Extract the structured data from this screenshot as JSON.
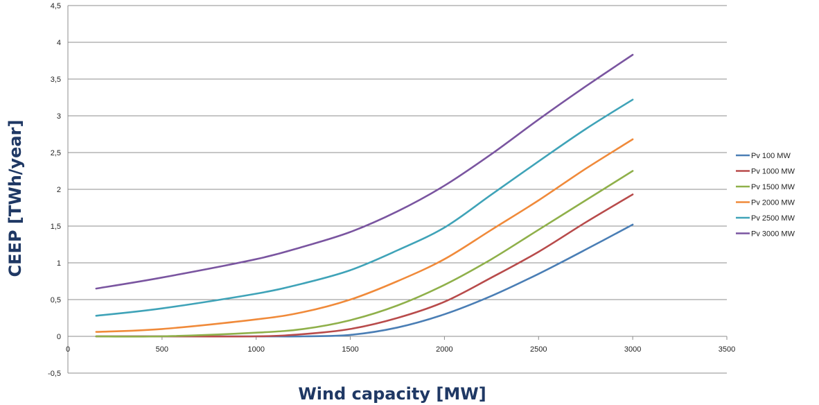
{
  "chart_data": {
    "type": "line",
    "title": "",
    "xlabel": "Wind capacity [MW]",
    "ylabel": "CEEP [TWh/year]",
    "xlim": [
      0,
      3500
    ],
    "ylim": [
      -0.5,
      4.5
    ],
    "x_ticks": [
      0,
      500,
      1000,
      1500,
      2000,
      2500,
      3000,
      3500
    ],
    "y_ticks": [
      -0.5,
      0,
      0.5,
      1,
      1.5,
      2,
      2.5,
      3,
      3.5,
      4,
      4.5
    ],
    "x_tick_labels": [
      "0",
      "500",
      "1000",
      "1500",
      "2000",
      "2500",
      "3000",
      "3500"
    ],
    "y_tick_labels": [
      "-0,5",
      "0",
      "0,5",
      "1",
      "1,5",
      "2",
      "2,5",
      "3",
      "3,5",
      "4",
      "4,5"
    ],
    "grid": "horizontal",
    "legend_position": "right",
    "x": [
      150,
      500,
      1000,
      1250,
      1500,
      1750,
      2000,
      2250,
      2500,
      2750,
      3000
    ],
    "series": [
      {
        "name": "Pv 100 MW",
        "color": "#4a7eb5",
        "values": [
          0,
          0,
          0,
          0,
          0.02,
          0.12,
          0.3,
          0.55,
          0.85,
          1.18,
          1.52
        ]
      },
      {
        "name": "Pv 1000 MW",
        "color": "#b84b4b",
        "values": [
          0,
          0,
          0,
          0.03,
          0.1,
          0.25,
          0.47,
          0.8,
          1.15,
          1.55,
          1.93
        ]
      },
      {
        "name": "Pv 1500 MW",
        "color": "#8fb04a",
        "values": [
          0,
          0,
          0.05,
          0.1,
          0.22,
          0.42,
          0.7,
          1.05,
          1.45,
          1.85,
          2.25
        ]
      },
      {
        "name": "Pv 2000 MW",
        "color": "#f08a3a",
        "values": [
          0.06,
          0.1,
          0.23,
          0.33,
          0.5,
          0.75,
          1.05,
          1.45,
          1.85,
          2.28,
          2.68
        ]
      },
      {
        "name": "Pv 2500 MW",
        "color": "#3fa3b8",
        "values": [
          0.28,
          0.38,
          0.58,
          0.72,
          0.9,
          1.17,
          1.48,
          1.93,
          2.38,
          2.82,
          3.22
        ]
      },
      {
        "name": "Pv 3000 MW",
        "color": "#7a55a0",
        "values": [
          0.65,
          0.8,
          1.05,
          1.22,
          1.42,
          1.7,
          2.05,
          2.48,
          2.95,
          3.4,
          3.83
        ]
      }
    ]
  }
}
